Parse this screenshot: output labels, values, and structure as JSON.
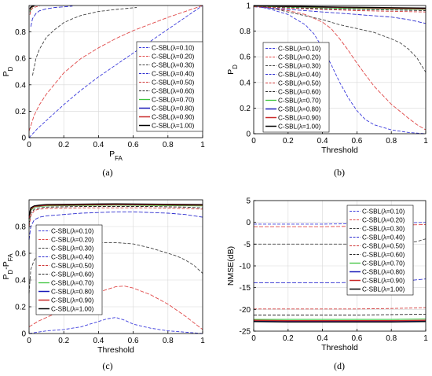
{
  "legend_entries": [
    "C-SBL(λ=0.10)",
    "C-SBL(λ=0.20)",
    "C-SBL(λ=0.30)",
    "C-SBL(λ=0.40)",
    "C-SBL(λ=0.50)",
    "C-SBL(λ=0.60)",
    "C-SBL(λ=0.70)",
    "C-SBL(λ=0.80)",
    "C-SBL(λ=0.90)",
    "C-SBL(λ=1.00)"
  ],
  "colors": {
    "series": [
      "#3c3cdc",
      "#e04848",
      "#444444",
      "#2f2fd0",
      "#d03a3a",
      "#2a2a2a",
      "#3cc43c",
      "#1a1ab8",
      "#c82828",
      "#000000"
    ],
    "axis": "#000000",
    "grid": "#d8d8d8"
  },
  "chart_data": [
    {
      "panel_label": "(a)",
      "type": "line",
      "xlabel": "P_FA",
      "ylabel": "P_D",
      "xlim": [
        0,
        1
      ],
      "ylim": [
        0,
        1
      ],
      "xticks": [
        0,
        0.2,
        0.4,
        0.6,
        0.8,
        1
      ],
      "xtick_labels": [
        "0",
        "0.2",
        "0.4",
        "0.6",
        "0.8",
        "1"
      ],
      "yticks": [
        0,
        0.2,
        0.4,
        0.6,
        0.8
      ],
      "ytick_labels": [
        "0",
        "0.2",
        "0.4",
        "0.6",
        "0.8"
      ],
      "grid": true,
      "legend_position": "bottom-right",
      "series": [
        {
          "name": "C-SBL(λ=0.10)",
          "x": [
            0,
            0.05,
            0.1,
            0.15,
            0.2,
            0.3,
            0.4,
            0.5,
            0.6,
            0.7,
            0.8,
            0.9,
            1.0
          ],
          "y": [
            0,
            0.07,
            0.13,
            0.19,
            0.25,
            0.36,
            0.46,
            0.55,
            0.64,
            0.73,
            0.82,
            0.91,
            1.0
          ]
        },
        {
          "name": "C-SBL(λ=0.20)",
          "x": [
            0,
            0.03,
            0.06,
            0.1,
            0.15,
            0.2,
            0.3,
            0.4,
            0.5,
            0.6,
            0.7,
            0.8,
            0.9,
            1.0
          ],
          "y": [
            0.05,
            0.17,
            0.25,
            0.33,
            0.41,
            0.49,
            0.6,
            0.68,
            0.75,
            0.81,
            0.86,
            0.91,
            0.955,
            1.0
          ]
        },
        {
          "name": "C-SBL(λ=0.30)",
          "x": [
            0.02,
            0.04,
            0.06,
            0.1,
            0.15,
            0.2,
            0.25,
            0.3,
            0.4,
            0.5,
            0.62
          ],
          "y": [
            0.47,
            0.6,
            0.67,
            0.76,
            0.82,
            0.87,
            0.9,
            0.925,
            0.955,
            0.97,
            0.985
          ]
        },
        {
          "name": "C-SBL(λ=0.40)",
          "x": [
            0.01,
            0.02,
            0.04,
            0.06,
            0.1,
            0.15,
            0.2,
            0.25
          ],
          "y": [
            0.84,
            0.9,
            0.94,
            0.96,
            0.975,
            0.985,
            0.99,
            0.995
          ]
        },
        {
          "name": "C-SBL(λ=0.50)",
          "x": [
            0.005,
            0.01,
            0.02,
            0.04,
            0.06
          ],
          "y": [
            0.93,
            0.96,
            0.98,
            0.99,
            0.995
          ]
        },
        {
          "name": "C-SBL(λ=0.60)",
          "x": [
            0.005,
            0.01,
            0.02,
            0.04
          ],
          "y": [
            0.95,
            0.975,
            0.99,
            0.995
          ]
        },
        {
          "name": "C-SBL(λ=0.70)",
          "x": [
            0.005,
            0.01,
            0.02,
            0.03
          ],
          "y": [
            0.96,
            0.98,
            0.99,
            0.995
          ]
        },
        {
          "name": "C-SBL(λ=0.80)",
          "x": [
            0.005,
            0.01,
            0.02,
            0.03
          ],
          "y": [
            0.97,
            0.985,
            0.993,
            0.997
          ]
        },
        {
          "name": "C-SBL(λ=0.90)",
          "x": [
            0.005,
            0.01,
            0.02,
            0.03
          ],
          "y": [
            0.97,
            0.985,
            0.993,
            0.997
          ]
        },
        {
          "name": "C-SBL(λ=1.00)",
          "x": [
            0.005,
            0.01,
            0.02,
            0.03
          ],
          "y": [
            0.975,
            0.988,
            0.995,
            0.998
          ]
        }
      ]
    },
    {
      "panel_label": "(b)",
      "type": "line",
      "xlabel": "Threshold",
      "ylabel": "P_D",
      "xlim": [
        0,
        1
      ],
      "ylim": [
        0,
        1
      ],
      "xticks": [
        0,
        0.2,
        0.4,
        0.6,
        0.8,
        1
      ],
      "xtick_labels": [
        "0",
        "0.2",
        "0.4",
        "0.6",
        "0.8",
        "1"
      ],
      "yticks": [
        0,
        0.2,
        0.4,
        0.6,
        0.8,
        1
      ],
      "ytick_labels": [
        "0",
        "0.2",
        "0.4",
        "0.6",
        "0.8",
        "1"
      ],
      "grid": true,
      "legend_position": "bottom-left",
      "series": [
        {
          "name": "C-SBL(λ=0.10)",
          "x": [
            0,
            0.1,
            0.2,
            0.3,
            0.35,
            0.4,
            0.45,
            0.5,
            0.55,
            0.6,
            0.65,
            0.7,
            0.8,
            0.9,
            1.0
          ],
          "y": [
            1.0,
            0.97,
            0.93,
            0.85,
            0.78,
            0.67,
            0.54,
            0.4,
            0.28,
            0.18,
            0.11,
            0.07,
            0.03,
            0.01,
            0.0
          ]
        },
        {
          "name": "C-SBL(λ=0.20)",
          "x": [
            0,
            0.1,
            0.2,
            0.3,
            0.4,
            0.45,
            0.5,
            0.55,
            0.6,
            0.65,
            0.7,
            0.8,
            0.9,
            0.95,
            1.0
          ],
          "y": [
            1.0,
            0.98,
            0.96,
            0.93,
            0.87,
            0.82,
            0.74,
            0.65,
            0.55,
            0.46,
            0.37,
            0.23,
            0.12,
            0.07,
            0.03
          ]
        },
        {
          "name": "C-SBL(λ=0.30)",
          "x": [
            0,
            0.1,
            0.2,
            0.3,
            0.4,
            0.5,
            0.6,
            0.7,
            0.8,
            0.85,
            0.9,
            0.95,
            1.0
          ],
          "y": [
            1.0,
            0.98,
            0.95,
            0.92,
            0.89,
            0.85,
            0.82,
            0.79,
            0.74,
            0.71,
            0.66,
            0.59,
            0.48
          ]
        },
        {
          "name": "C-SBL(λ=0.40)",
          "x": [
            0,
            0.2,
            0.4,
            0.6,
            0.8,
            0.9,
            1.0
          ],
          "y": [
            0.99,
            0.97,
            0.95,
            0.93,
            0.91,
            0.89,
            0.86
          ]
        },
        {
          "name": "C-SBL(λ=0.50)",
          "x": [
            0,
            0.2,
            0.4,
            0.6,
            0.8,
            1.0
          ],
          "y": [
            0.99,
            0.98,
            0.97,
            0.96,
            0.955,
            0.95
          ]
        },
        {
          "name": "C-SBL(λ=0.60)",
          "x": [
            0,
            0.2,
            0.4,
            0.6,
            0.8,
            1.0
          ],
          "y": [
            0.995,
            0.985,
            0.975,
            0.97,
            0.965,
            0.96
          ]
        },
        {
          "name": "C-SBL(λ=0.70)",
          "x": [
            0,
            0.5,
            1.0
          ],
          "y": [
            0.995,
            0.98,
            0.97
          ]
        },
        {
          "name": "C-SBL(λ=0.80)",
          "x": [
            0,
            0.5,
            1.0
          ],
          "y": [
            0.997,
            0.985,
            0.975
          ]
        },
        {
          "name": "C-SBL(λ=0.90)",
          "x": [
            0,
            0.5,
            1.0
          ],
          "y": [
            0.997,
            0.985,
            0.975
          ]
        },
        {
          "name": "C-SBL(λ=1.00)",
          "x": [
            0,
            0.5,
            1.0
          ],
          "y": [
            0.998,
            0.988,
            0.98
          ]
        }
      ]
    },
    {
      "panel_label": "(c)",
      "type": "line",
      "xlabel": "Threshold",
      "ylabel": "P_D-P_FA",
      "xlim": [
        0,
        1
      ],
      "ylim": [
        0,
        1
      ],
      "xticks": [
        0,
        0.2,
        0.4,
        0.6,
        0.8,
        1
      ],
      "xtick_labels": [
        "0",
        "0.2",
        "0.4",
        "0.6",
        "0.8",
        "1"
      ],
      "yticks": [
        0,
        0.2,
        0.4,
        0.6,
        0.8
      ],
      "ytick_labels": [
        "0",
        "0.2",
        "0.4",
        "0.6",
        "0.8"
      ],
      "grid": true,
      "legend_position": "left",
      "series": [
        {
          "name": "C-SBL(λ=0.10)",
          "x": [
            0,
            0.1,
            0.2,
            0.3,
            0.35,
            0.4,
            0.45,
            0.5,
            0.55,
            0.6,
            0.7,
            0.8,
            0.9,
            1.0
          ],
          "y": [
            0.0,
            0.02,
            0.03,
            0.05,
            0.07,
            0.09,
            0.11,
            0.12,
            0.1,
            0.07,
            0.04,
            0.02,
            0.01,
            0.0
          ]
        },
        {
          "name": "C-SBL(λ=0.20)",
          "x": [
            0,
            0.05,
            0.1,
            0.2,
            0.3,
            0.4,
            0.5,
            0.55,
            0.6,
            0.7,
            0.8,
            0.9,
            0.95,
            1.0
          ],
          "y": [
            0.05,
            0.09,
            0.12,
            0.18,
            0.25,
            0.31,
            0.35,
            0.355,
            0.34,
            0.29,
            0.22,
            0.13,
            0.08,
            0.03
          ]
        },
        {
          "name": "C-SBL(λ=0.30)",
          "x": [
            0,
            0.01,
            0.03,
            0.06,
            0.1,
            0.2,
            0.3,
            0.4,
            0.5,
            0.6,
            0.7,
            0.8,
            0.85,
            0.9,
            0.95,
            1.0
          ],
          "y": [
            0.3,
            0.48,
            0.55,
            0.6,
            0.62,
            0.65,
            0.67,
            0.68,
            0.68,
            0.67,
            0.64,
            0.6,
            0.58,
            0.55,
            0.51,
            0.45
          ]
        },
        {
          "name": "C-SBL(λ=0.40)",
          "x": [
            0,
            0.01,
            0.03,
            0.06,
            0.1,
            0.2,
            0.3,
            0.4,
            0.5,
            0.6,
            0.7,
            0.8,
            0.9,
            1.0
          ],
          "y": [
            0.7,
            0.8,
            0.85,
            0.87,
            0.88,
            0.89,
            0.9,
            0.905,
            0.91,
            0.91,
            0.905,
            0.9,
            0.89,
            0.87
          ]
        },
        {
          "name": "C-SBL(λ=0.50)",
          "x": [
            0,
            0.01,
            0.03,
            0.06,
            0.1,
            0.3,
            0.5,
            0.7,
            0.9,
            1.0
          ],
          "y": [
            0.8,
            0.88,
            0.92,
            0.93,
            0.935,
            0.94,
            0.94,
            0.94,
            0.935,
            0.93
          ]
        },
        {
          "name": "C-SBL(λ=0.60)",
          "x": [
            0,
            0.01,
            0.03,
            0.06,
            0.1,
            0.3,
            0.5,
            0.7,
            0.9,
            1.0
          ],
          "y": [
            0.82,
            0.9,
            0.93,
            0.94,
            0.945,
            0.95,
            0.95,
            0.95,
            0.945,
            0.94
          ]
        },
        {
          "name": "C-SBL(λ=0.70)",
          "x": [
            0,
            0.01,
            0.03,
            0.06,
            0.1,
            0.5,
            1.0
          ],
          "y": [
            0.85,
            0.92,
            0.945,
            0.95,
            0.955,
            0.96,
            0.955
          ]
        },
        {
          "name": "C-SBL(λ=0.80)",
          "x": [
            0,
            0.01,
            0.03,
            0.06,
            0.1,
            0.5,
            1.0
          ],
          "y": [
            0.86,
            0.93,
            0.95,
            0.955,
            0.96,
            0.965,
            0.96
          ]
        },
        {
          "name": "C-SBL(λ=0.90)",
          "x": [
            0,
            0.01,
            0.03,
            0.06,
            0.1,
            0.5,
            1.0
          ],
          "y": [
            0.86,
            0.93,
            0.95,
            0.955,
            0.96,
            0.965,
            0.96
          ]
        },
        {
          "name": "C-SBL(λ=1.00)",
          "x": [
            0,
            0.01,
            0.03,
            0.06,
            0.1,
            0.5,
            1.0
          ],
          "y": [
            0.88,
            0.94,
            0.955,
            0.96,
            0.965,
            0.97,
            0.965
          ]
        }
      ]
    },
    {
      "panel_label": "(d)",
      "type": "line",
      "xlabel": "Threshold",
      "ylabel": "NMSE(dB)",
      "xlim": [
        0,
        1
      ],
      "ylim": [
        -25,
        5
      ],
      "xticks": [
        0,
        0.2,
        0.4,
        0.6,
        0.8,
        1
      ],
      "xtick_labels": [
        "0",
        "0.2",
        "0.4",
        "0.6",
        "0.8",
        "1"
      ],
      "yticks": [
        -25,
        -20,
        -15,
        -10,
        -5,
        0,
        5
      ],
      "ytick_labels": [
        "-25",
        "-20",
        "-15",
        "-10",
        "-5",
        "0",
        "5"
      ],
      "grid": true,
      "legend_position": "top-right",
      "series": [
        {
          "name": "C-SBL(λ=0.10)",
          "x": [
            0,
            0.2,
            0.4,
            0.6,
            0.8,
            0.9,
            1.0
          ],
          "y": [
            -0.4,
            -0.4,
            -0.4,
            -0.3,
            -0.2,
            -0.1,
            0.0
          ]
        },
        {
          "name": "C-SBL(λ=0.20)",
          "x": [
            0,
            0.2,
            0.4,
            0.6,
            0.8,
            0.9,
            1.0
          ],
          "y": [
            -1.0,
            -1.0,
            -1.0,
            -0.9,
            -0.8,
            -0.6,
            -0.5
          ]
        },
        {
          "name": "C-SBL(λ=0.30)",
          "x": [
            0,
            0.2,
            0.4,
            0.6,
            0.8,
            0.9,
            0.95,
            1.0
          ],
          "y": [
            -5.0,
            -5.0,
            -5.0,
            -5.0,
            -4.9,
            -4.7,
            -4.4,
            -3.8
          ]
        },
        {
          "name": "C-SBL(λ=0.40)",
          "x": [
            0,
            0.2,
            0.4,
            0.6,
            0.8,
            0.9,
            1.0
          ],
          "y": [
            -13.9,
            -13.9,
            -13.9,
            -13.8,
            -13.6,
            -13.4,
            -13.0
          ]
        },
        {
          "name": "C-SBL(λ=0.50)",
          "x": [
            0,
            0.2,
            0.4,
            0.6,
            0.8,
            1.0
          ],
          "y": [
            -19.9,
            -19.9,
            -19.9,
            -19.9,
            -19.8,
            -19.6
          ]
        },
        {
          "name": "C-SBL(λ=0.60)",
          "x": [
            0,
            0.2,
            0.4,
            0.6,
            0.8,
            1.0
          ],
          "y": [
            -21.3,
            -21.3,
            -21.3,
            -21.3,
            -21.2,
            -21.1
          ]
        },
        {
          "name": "C-SBL(λ=0.70)",
          "x": [
            0,
            0.2,
            0.4,
            0.6,
            0.8,
            1.0
          ],
          "y": [
            -22.3,
            -22.3,
            -22.3,
            -22.3,
            -22.3,
            -22.2
          ]
        },
        {
          "name": "C-SBL(λ=0.80)",
          "x": [
            0,
            0.2,
            0.4,
            0.6,
            0.8,
            1.0
          ],
          "y": [
            -22.6,
            -22.7,
            -22.7,
            -22.7,
            -22.7,
            -22.6
          ]
        },
        {
          "name": "C-SBL(λ=0.90)",
          "x": [
            0,
            0.2,
            0.4,
            0.6,
            0.8,
            1.0
          ],
          "y": [
            -22.5,
            -22.6,
            -22.6,
            -22.6,
            -22.6,
            -22.5
          ]
        },
        {
          "name": "C-SBL(λ=1.00)",
          "x": [
            0,
            0.2,
            0.4,
            0.6,
            0.8,
            1.0
          ],
          "y": [
            -22.8,
            -22.9,
            -22.9,
            -22.9,
            -22.9,
            -22.8
          ]
        }
      ]
    }
  ]
}
